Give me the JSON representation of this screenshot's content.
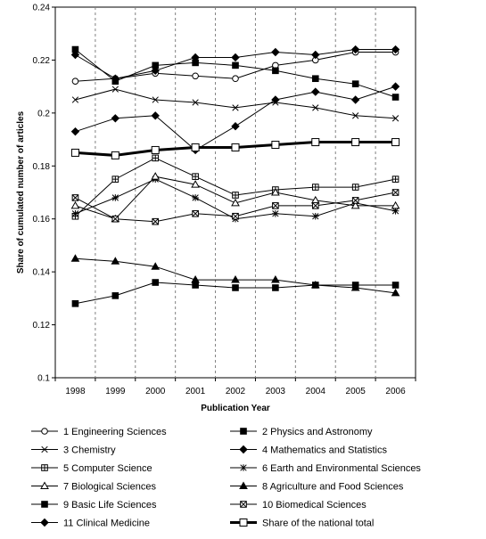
{
  "chart_data": {
    "type": "line",
    "xlabel": "Publication Year",
    "ylabel": "Share of cumulated number of articles",
    "ylim": [
      0.1,
      0.24
    ],
    "yticks": [
      "0.1",
      "0.12",
      "0.14",
      "0.16",
      "0.18",
      "0.2",
      "0.22",
      "0.24"
    ],
    "x": [
      "1998",
      "1999",
      "2000",
      "2001",
      "2002",
      "2003",
      "2004",
      "2005",
      "2006"
    ],
    "grid": "vertical dashed",
    "legend_position": "bottom",
    "series": [
      {
        "name": "1 Engineering Sciences",
        "marker": "circle-open",
        "values": [
          0.212,
          0.213,
          0.215,
          0.214,
          0.213,
          0.218,
          0.22,
          0.223,
          0.223
        ]
      },
      {
        "name": "2 Physics and Astronomy",
        "marker": "square-filled",
        "values": [
          0.224,
          0.212,
          0.218,
          0.219,
          0.218,
          0.216,
          0.213,
          0.211,
          0.206
        ]
      },
      {
        "name": "3 Chemistry",
        "marker": "x",
        "values": [
          0.205,
          0.209,
          0.205,
          0.204,
          0.202,
          0.204,
          0.202,
          0.199,
          0.198
        ]
      },
      {
        "name": "4 Mathematics and Statistics",
        "marker": "diamond-filled",
        "values": [
          0.222,
          0.213,
          0.216,
          0.221,
          0.221,
          0.223,
          0.222,
          0.224,
          0.224
        ]
      },
      {
        "name": "5 Computer Science",
        "marker": "square-plus",
        "values": [
          0.161,
          0.175,
          0.183,
          0.176,
          0.169,
          0.171,
          0.172,
          0.172,
          0.175
        ]
      },
      {
        "name": "6 Earth and Environmental Sciences",
        "marker": "asterisk",
        "values": [
          0.162,
          0.168,
          0.175,
          0.168,
          0.16,
          0.162,
          0.161,
          0.166,
          0.163
        ]
      },
      {
        "name": "7 Biological Sciences",
        "marker": "triangle-open",
        "values": [
          0.165,
          0.16,
          0.176,
          0.173,
          0.166,
          0.17,
          0.167,
          0.165,
          0.165
        ]
      },
      {
        "name": "8 Agriculture and Food Sciences",
        "marker": "triangle-filled",
        "values": [
          0.145,
          0.144,
          0.142,
          0.137,
          0.137,
          0.137,
          0.135,
          0.134,
          0.132
        ]
      },
      {
        "name": "9 Basic Life Sciences",
        "marker": "square-filled",
        "values": [
          0.128,
          0.131,
          0.136,
          0.135,
          0.134,
          0.134,
          0.135,
          0.135,
          0.135
        ]
      },
      {
        "name": "10 Biomedical Sciences",
        "marker": "square-x",
        "values": [
          0.168,
          0.16,
          0.159,
          0.162,
          0.161,
          0.165,
          0.165,
          0.167,
          0.17
        ]
      },
      {
        "name": "11 Clinical Medicine",
        "marker": "diamond-filled",
        "values": [
          0.193,
          0.198,
          0.199,
          0.186,
          0.195,
          0.205,
          0.208,
          0.205,
          0.21
        ]
      },
      {
        "name": "Share of the national total",
        "marker": "square-open",
        "thick": true,
        "values": [
          0.185,
          0.184,
          0.186,
          0.187,
          0.187,
          0.188,
          0.189,
          0.189,
          0.189
        ]
      }
    ]
  }
}
